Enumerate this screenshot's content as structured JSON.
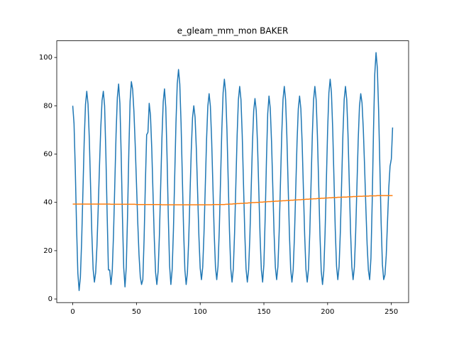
{
  "chart_data": {
    "type": "line",
    "title": "e_gleam_mm_mon BAKER",
    "x": [
      0,
      1,
      2,
      3,
      4,
      5,
      6,
      7,
      8,
      9,
      10,
      11,
      12,
      13,
      14,
      15,
      16,
      17,
      18,
      19,
      20,
      21,
      22,
      23,
      24,
      25,
      26,
      27,
      28,
      29,
      30,
      31,
      32,
      33,
      34,
      35,
      36,
      37,
      38,
      39,
      40,
      41,
      42,
      43,
      44,
      45,
      46,
      47,
      48,
      49,
      50,
      51,
      52,
      53,
      54,
      55,
      56,
      57,
      58,
      59,
      60,
      61,
      62,
      63,
      64,
      65,
      66,
      67,
      68,
      69,
      70,
      71,
      72,
      73,
      74,
      75,
      76,
      77,
      78,
      79,
      80,
      81,
      82,
      83,
      84,
      85,
      86,
      87,
      88,
      89,
      90,
      91,
      92,
      93,
      94,
      95,
      96,
      97,
      98,
      99,
      100,
      101,
      102,
      103,
      104,
      105,
      106,
      107,
      108,
      109,
      110,
      111,
      112,
      113,
      114,
      115,
      116,
      117,
      118,
      119,
      120,
      121,
      122,
      123,
      124,
      125,
      126,
      127,
      128,
      129,
      130,
      131,
      132,
      133,
      134,
      135,
      136,
      137,
      138,
      139,
      140,
      141,
      142,
      143,
      144,
      145,
      146,
      147,
      148,
      149,
      150,
      151,
      152,
      153,
      154,
      155,
      156,
      157,
      158,
      159,
      160,
      161,
      162,
      163,
      164,
      165,
      166,
      167,
      168,
      169,
      170,
      171,
      172,
      173,
      174,
      175,
      176,
      177,
      178,
      179,
      180,
      181,
      182,
      183,
      184,
      185,
      186,
      187,
      188,
      189,
      190,
      191,
      192,
      193,
      194,
      195,
      196,
      197,
      198,
      199,
      200,
      201,
      202,
      203,
      204,
      205,
      206,
      207,
      208,
      209,
      210,
      211,
      212,
      213,
      214,
      215,
      216,
      217,
      218,
      219,
      220,
      221,
      222,
      223,
      224,
      225,
      226,
      227,
      228,
      229,
      230,
      231,
      232,
      233,
      234,
      235,
      236,
      237,
      238,
      239,
      240,
      241,
      242,
      243,
      244,
      245,
      246,
      247,
      248,
      249,
      250,
      251
    ],
    "series": [
      {
        "color": "#1f77b4",
        "values": [
          80,
          72.7,
          53.6,
          29.9,
          10.8,
          3.5,
          9.0,
          24.1,
          44.8,
          65.4,
          80.5,
          86,
          80.7,
          66.3,
          46.5,
          26.8,
          12.3,
          7,
          11.0,
          22.0,
          37.8,
          55.2,
          71.0,
          82.1,
          86,
          80,
          60,
          35,
          12,
          12,
          6,
          11.6,
          26.8,
          47.5,
          68.3,
          83.4,
          89,
          81.0,
          60.0,
          34.0,
          13.0,
          5,
          13.1,
          34.3,
          60.7,
          81.9,
          90,
          86.8,
          77.7,
          64.0,
          48.0,
          32.0,
          18.3,
          9.2,
          6,
          8,
          25,
          48,
          68,
          69,
          81,
          76.0,
          62.3,
          43.5,
          24.8,
          11.0,
          6,
          11.4,
          26.3,
          46.5,
          66.8,
          81.6,
          87,
          79.3,
          59.1,
          33.9,
          13.7,
          6,
          12.0,
          28.3,
          50.5,
          72.8,
          89.0,
          95,
          89.0,
          72.8,
          50.5,
          28.3,
          12.0,
          6,
          11.0,
          24.5,
          43.0,
          61.5,
          75.0,
          80,
          75.2,
          62.0,
          44.0,
          26.0,
          12.8,
          8,
          13.2,
          27.3,
          46.5,
          65.8,
          79.8,
          85,
          79.8,
          65.8,
          46.5,
          27.3,
          13.2,
          8,
          13.6,
          28.8,
          49.5,
          70.3,
          85.4,
          91,
          85.4,
          70.0,
          49.0,
          28.0,
          12.6,
          7,
          12.4,
          27.3,
          47.5,
          67.8,
          82.6,
          88,
          82.6,
          67.8,
          47.5,
          27.3,
          12.4,
          7,
          12.1,
          26.0,
          45.0,
          64.0,
          77.9,
          83,
          77.9,
          64.0,
          45.0,
          26.0,
          12.1,
          7,
          14.3,
          33.6,
          57.4,
          76.7,
          84,
          78.9,
          65.0,
          46.0,
          27.0,
          13.1,
          8,
          13.4,
          28.0,
          48.0,
          68.0,
          82.6,
          88,
          82.6,
          67.8,
          47.5,
          27.3,
          12.4,
          7,
          12.2,
          26.3,
          45.5,
          64.8,
          78.8,
          84,
          78.8,
          64.8,
          45.5,
          26.3,
          12.2,
          7,
          12.4,
          27.3,
          47.5,
          67.8,
          82.6,
          88,
          82.5,
          67.5,
          47.0,
          26.5,
          11.5,
          6,
          11.7,
          27.3,
          48.5,
          69.8,
          85.3,
          91,
          85.4,
          70.3,
          49.5,
          28.8,
          13.6,
          8,
          13.4,
          28.0,
          48.0,
          68.0,
          82.6,
          88,
          82.6,
          68.0,
          48.0,
          28.0,
          13.4,
          8,
          13.2,
          27.3,
          46.5,
          65.8,
          79.8,
          85,
          81.2,
          70.4,
          55.0,
          38.0,
          22.6,
          11.9,
          8,
          16.9,
          40.4,
          69.6,
          93.1,
          102,
          95.7,
          78.5,
          55.0,
          31.5,
          14.3,
          8,
          10,
          18,
          32,
          46,
          55,
          58,
          71
        ]
      },
      {
        "color": "#ff7f0e",
        "values": [
          39.3,
          39.3,
          39.3,
          39.3,
          39.3,
          39.3,
          39.3,
          39.3,
          39.3,
          39.3,
          39.3,
          39.3,
          39.3,
          39.3,
          39.3,
          39.3,
          39.3,
          39.3,
          39.3,
          39.3,
          39.3,
          39.3,
          39.3,
          39.3,
          39.3,
          39.3,
          39.3,
          39.3,
          39.3,
          39.3,
          39.2,
          39.2,
          39.2,
          39.2,
          39.2,
          39.2,
          39.2,
          39.2,
          39.2,
          39.2,
          39.2,
          39.2,
          39.2,
          39.2,
          39.2,
          39.2,
          39.2,
          39.2,
          39.2,
          39.2,
          39.1,
          39.1,
          39.1,
          39.1,
          39.1,
          39.1,
          39.1,
          39.1,
          39.1,
          39.1,
          39.1,
          39.1,
          39.1,
          39.1,
          39.1,
          39.1,
          39.1,
          39.1,
          39.1,
          39.1,
          39.0,
          39.0,
          39.0,
          39.0,
          39.0,
          39.0,
          39.0,
          39.0,
          39.0,
          39.0,
          39.0,
          39.0,
          39.0,
          39.0,
          39.0,
          39.0,
          39.0,
          39.0,
          39.0,
          39.0,
          39.0,
          39.0,
          39.0,
          39.0,
          39.0,
          39.0,
          39.0,
          39.0,
          39.0,
          39.0,
          39.0,
          39.0,
          39.0,
          39.0,
          39.0,
          39.0,
          39.0,
          39.0,
          39.0,
          39.0,
          39.1,
          39.1,
          39.1,
          39.1,
          39.1,
          39.1,
          39.1,
          39.1,
          39.1,
          39.1,
          39.2,
          39.2,
          39.2,
          39.3,
          39.3,
          39.3,
          39.4,
          39.4,
          39.4,
          39.5,
          39.5,
          39.5,
          39.6,
          39.6,
          39.6,
          39.7,
          39.7,
          39.7,
          39.8,
          39.8,
          39.8,
          39.9,
          39.9,
          39.9,
          40.0,
          40.0,
          40.0,
          40.1,
          40.1,
          40.1,
          40.2,
          40.2,
          40.2,
          40.3,
          40.3,
          40.3,
          40.4,
          40.4,
          40.4,
          40.5,
          40.5,
          40.5,
          40.6,
          40.6,
          40.6,
          40.7,
          40.7,
          40.7,
          40.8,
          40.8,
          40.8,
          40.9,
          40.9,
          40.9,
          41.0,
          41.0,
          41.0,
          41.1,
          41.1,
          41.1,
          41.2,
          41.2,
          41.2,
          41.3,
          41.3,
          41.3,
          41.4,
          41.4,
          41.4,
          41.5,
          41.5,
          41.5,
          41.6,
          41.6,
          41.6,
          41.7,
          41.7,
          41.7,
          41.8,
          41.8,
          41.8,
          41.9,
          41.9,
          41.9,
          42.0,
          42.0,
          42.0,
          42.0,
          42.1,
          42.1,
          42.1,
          42.1,
          42.2,
          42.2,
          42.2,
          42.2,
          42.3,
          42.3,
          42.3,
          42.3,
          42.4,
          42.4,
          42.4,
          42.4,
          42.5,
          42.5,
          42.5,
          42.5,
          42.6,
          42.6,
          42.6,
          42.6,
          42.6,
          42.7,
          42.7,
          42.7,
          42.7,
          42.7,
          42.7,
          42.8,
          42.8,
          42.8,
          42.8,
          42.8,
          42.8,
          42.8,
          42.8,
          42.8,
          42.8,
          42.8,
          42.8,
          42.8
        ]
      }
    ],
    "xlim": [
      -12.55,
      263.55
    ],
    "ylim": [
      -1.5,
      106.9
    ],
    "xticks": [
      0,
      50,
      100,
      150,
      200,
      250
    ],
    "yticks": [
      0,
      20,
      40,
      60,
      80,
      100
    ]
  }
}
